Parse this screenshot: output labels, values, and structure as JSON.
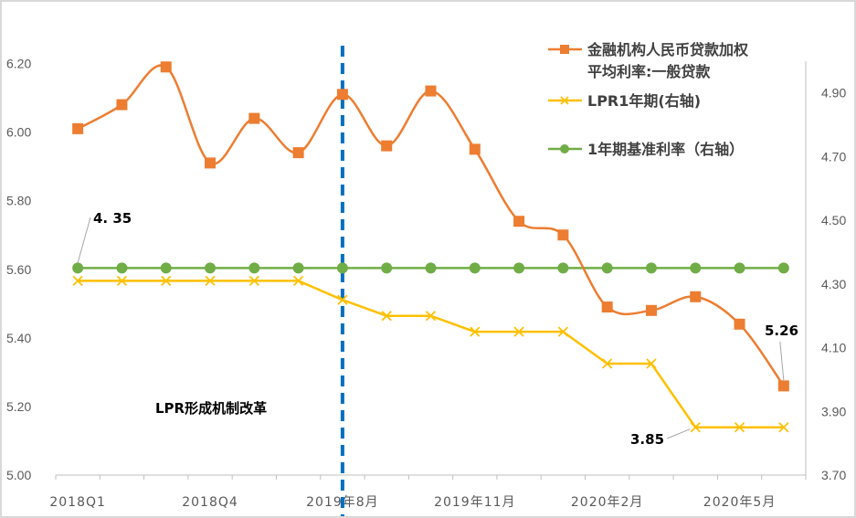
{
  "chart_data": {
    "type": "line",
    "x_tick_labels": [
      "2018Q1",
      "",
      "",
      "2018Q4",
      "",
      "",
      "2019年8月",
      "",
      "",
      "2019年11月",
      "",
      "",
      "2020年2月",
      "",
      "",
      "2020年5月",
      ""
    ],
    "left_axis": {
      "ylim": [
        5.0,
        6.3
      ],
      "ticks": [
        "5.00",
        "5.20",
        "5.40",
        "5.60",
        "5.80",
        "6.00",
        "6.20"
      ]
    },
    "right_axis": {
      "ylim": [
        3.7,
        5.1
      ],
      "ticks": [
        "3.70",
        "3.90",
        "4.10",
        "4.30",
        "4.50",
        "4.70",
        "4.90"
      ]
    },
    "grid": false,
    "legend_position": "top-right",
    "series": [
      {
        "name": "金融机构人民币贷款加权平均利率:一般贷款",
        "legend_lines": [
          "金融机构人民币贷款加权",
          "平均利率:一般贷款"
        ],
        "axis": "left",
        "color": "#ED7D31",
        "marker": "square",
        "values": [
          6.01,
          6.08,
          6.19,
          5.91,
          6.04,
          5.94,
          6.11,
          5.96,
          6.12,
          5.95,
          5.74,
          5.7,
          5.49,
          5.48,
          5.52,
          5.44,
          5.26
        ]
      },
      {
        "name": "LPR1年期(右轴)",
        "axis": "right",
        "color": "#FFC000",
        "marker": "x",
        "values": [
          4.31,
          4.31,
          4.31,
          4.31,
          4.31,
          4.31,
          4.25,
          4.2,
          4.2,
          4.15,
          4.15,
          4.15,
          4.05,
          4.05,
          3.85,
          3.85,
          3.85
        ]
      },
      {
        "name": "1年期基准利率（右轴）",
        "axis": "right",
        "color": "#70AD47",
        "marker": "circle",
        "values": [
          4.35,
          4.35,
          4.35,
          4.35,
          4.35,
          4.35,
          4.35,
          4.35,
          4.35,
          4.35,
          4.35,
          4.35,
          4.35,
          4.35,
          4.35,
          4.35,
          4.35
        ]
      }
    ],
    "reference_line": {
      "x_index": 6,
      "color": "#0070C0",
      "style": "dashed",
      "label": "LPR形成机制改革"
    },
    "annotations": [
      {
        "text": "4. 35",
        "series": 2,
        "index": 0
      },
      {
        "text": "5.26",
        "series": 0,
        "index": 16
      },
      {
        "text": "3.85",
        "series": 1,
        "index": 14
      }
    ]
  }
}
